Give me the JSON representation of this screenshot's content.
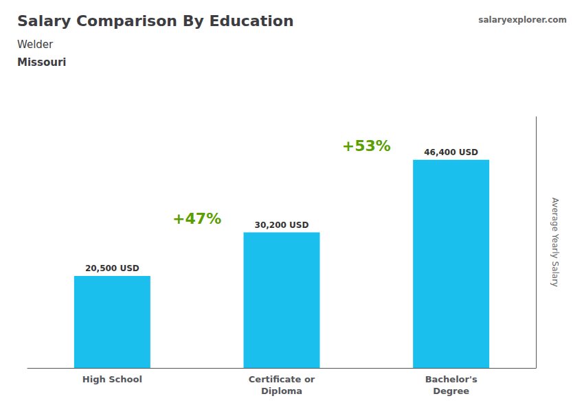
{
  "chart_data": {
    "type": "bar",
    "title": "Salary Comparison By Education",
    "subtitle": [
      "Welder",
      "Missouri"
    ],
    "ylabel": "Average Yearly Salary",
    "categories": [
      "High School",
      "Certificate or\nDiploma",
      "Bachelor's\nDegree"
    ],
    "values": [
      20500,
      30200,
      46400
    ],
    "value_labels": [
      "20,500 USD",
      "30,200 USD",
      "46,400 USD"
    ],
    "annotations": [
      "+47%",
      "+53%",
      "salaryexplorer.com"
    ],
    "color": "#1BBFEE",
    "ylim": [
      0,
      56000
    ],
    "tick_labels": false,
    "grid": false,
    "data_labels": true
  }
}
